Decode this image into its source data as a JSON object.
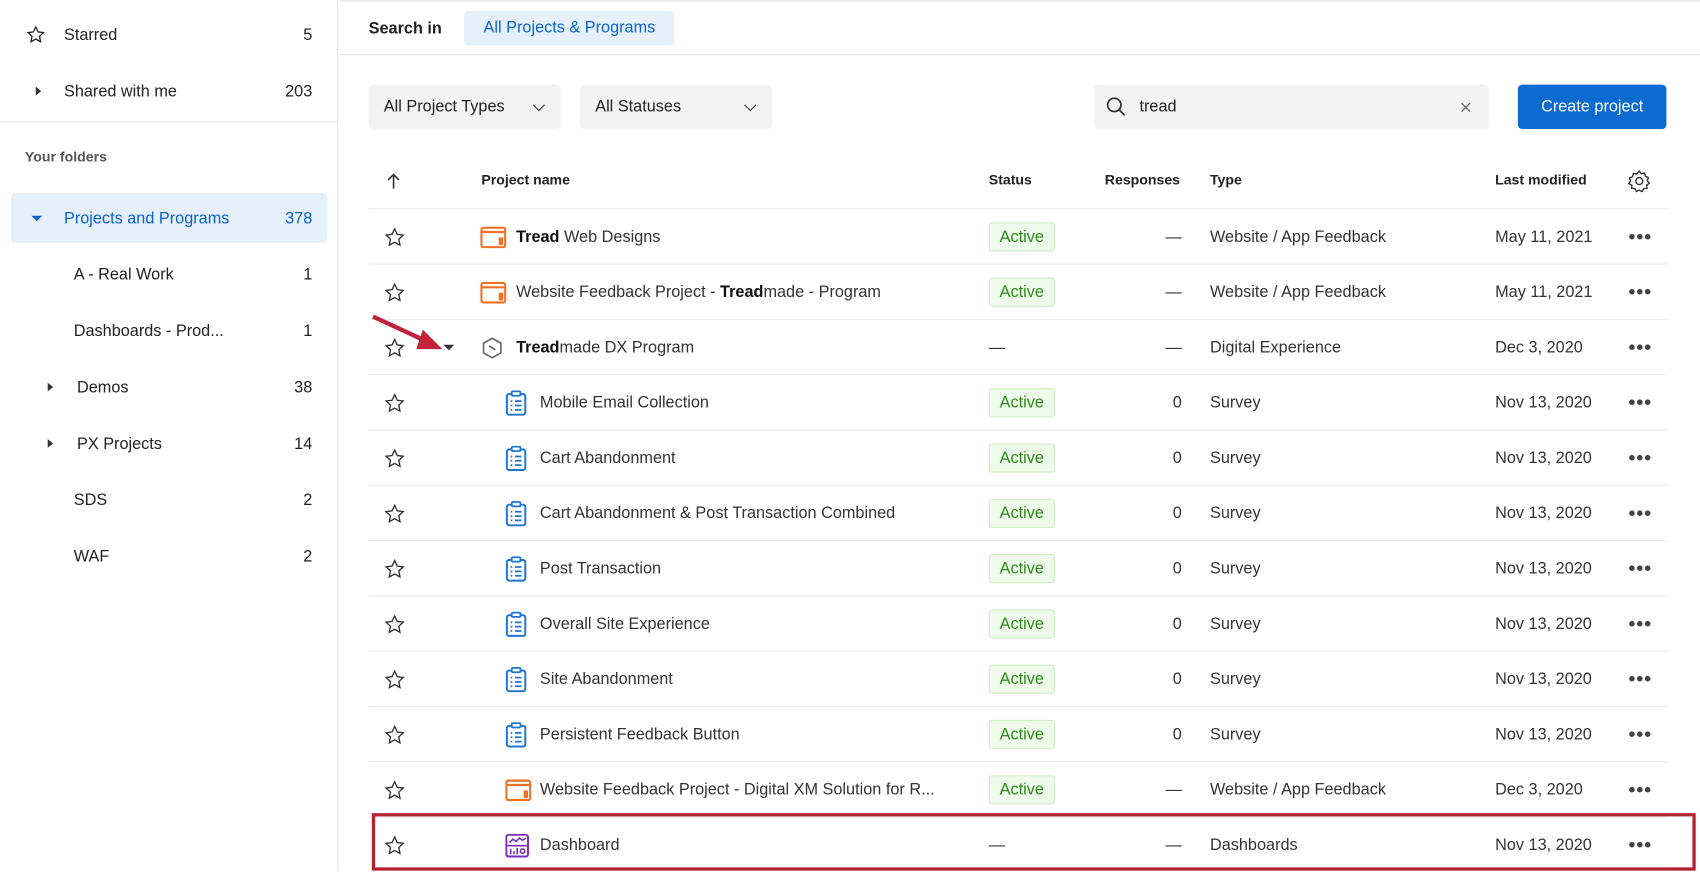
{
  "sidebar": {
    "starred": {
      "label": "Starred",
      "count": "5"
    },
    "shared": {
      "label": "Shared with me",
      "count": "203"
    },
    "folders_heading": "Your folders",
    "root": {
      "label": "Projects and Programs",
      "count": "378"
    },
    "children": [
      {
        "label": "A - Real Work",
        "count": "1",
        "expandable": false
      },
      {
        "label": "Dashboards - Prod...",
        "count": "1",
        "expandable": false
      },
      {
        "label": "Demos",
        "count": "38",
        "expandable": true
      },
      {
        "label": "PX Projects",
        "count": "14",
        "expandable": true
      },
      {
        "label": "SDS",
        "count": "2",
        "expandable": false
      },
      {
        "label": "WAF",
        "count": "2",
        "expandable": false
      }
    ]
  },
  "topbar": {
    "search_in_label": "Search in",
    "scope_tab": "All Projects & Programs"
  },
  "filters": {
    "project_types": "All Project Types",
    "statuses": "All Statuses",
    "search_value": "tread",
    "create_button": "Create project"
  },
  "table": {
    "headers": {
      "name": "Project name",
      "status": "Status",
      "responses": "Responses",
      "type": "Type",
      "modified": "Last modified"
    },
    "rows": [
      {
        "icon": "website-feedback",
        "child": false,
        "name": [
          {
            "t": "Tread",
            "b": true
          },
          {
            "t": " Web Designs"
          }
        ],
        "status": "Active",
        "responses": "—",
        "type": "Website / App Feedback",
        "modified": "May 11, 2021"
      },
      {
        "icon": "website-feedback",
        "child": false,
        "name": [
          {
            "t": "Website Feedback Project - "
          },
          {
            "t": "Tread",
            "b": true
          },
          {
            "t": "made - Program"
          }
        ],
        "status": "Active",
        "responses": "—",
        "type": "Website / App Feedback",
        "modified": "May 11, 2021"
      },
      {
        "icon": "program",
        "child": false,
        "expanded": true,
        "name": [
          {
            "t": "Tread",
            "b": true
          },
          {
            "t": "made DX Program"
          }
        ],
        "status": "—",
        "responses": "—",
        "type": "Digital Experience",
        "modified": "Dec 3, 2020"
      },
      {
        "icon": "survey",
        "child": true,
        "name": [
          {
            "t": "Mobile Email Collection"
          }
        ],
        "status": "Active",
        "responses": "0",
        "type": "Survey",
        "modified": "Nov 13, 2020"
      },
      {
        "icon": "survey",
        "child": true,
        "name": [
          {
            "t": "Cart Abandonment"
          }
        ],
        "status": "Active",
        "responses": "0",
        "type": "Survey",
        "modified": "Nov 13, 2020"
      },
      {
        "icon": "survey",
        "child": true,
        "name": [
          {
            "t": "Cart Abandonment & Post Transaction Combined"
          }
        ],
        "status": "Active",
        "responses": "0",
        "type": "Survey",
        "modified": "Nov 13, 2020"
      },
      {
        "icon": "survey",
        "child": true,
        "name": [
          {
            "t": "Post Transaction"
          }
        ],
        "status": "Active",
        "responses": "0",
        "type": "Survey",
        "modified": "Nov 13, 2020"
      },
      {
        "icon": "survey",
        "child": true,
        "name": [
          {
            "t": "Overall Site Experience"
          }
        ],
        "status": "Active",
        "responses": "0",
        "type": "Survey",
        "modified": "Nov 13, 2020"
      },
      {
        "icon": "survey",
        "child": true,
        "name": [
          {
            "t": "Site Abandonment"
          }
        ],
        "status": "Active",
        "responses": "0",
        "type": "Survey",
        "modified": "Nov 13, 2020"
      },
      {
        "icon": "survey",
        "child": true,
        "name": [
          {
            "t": "Persistent Feedback Button"
          }
        ],
        "status": "Active",
        "responses": "0",
        "type": "Survey",
        "modified": "Nov 13, 2020"
      },
      {
        "icon": "website-feedback",
        "child": true,
        "name": [
          {
            "t": "Website Feedback Project - Digital XM Solution for R..."
          }
        ],
        "status": "Active",
        "responses": "—",
        "type": "Website / App Feedback",
        "modified": "Dec 3, 2020"
      },
      {
        "icon": "dashboard",
        "child": true,
        "highlighted": true,
        "name": [
          {
            "t": "Dashboard"
          }
        ],
        "status": "—",
        "responses": "—",
        "type": "Dashboards",
        "modified": "Nov 13, 2020"
      }
    ]
  },
  "colors": {
    "accent": "#0b63ce",
    "active": "#2f8a1c",
    "highlight": "#b5202e",
    "website_icon": "#f36f21",
    "survey_icon": "#1c74d4",
    "dashboard_icon": "#7b2fbe"
  }
}
